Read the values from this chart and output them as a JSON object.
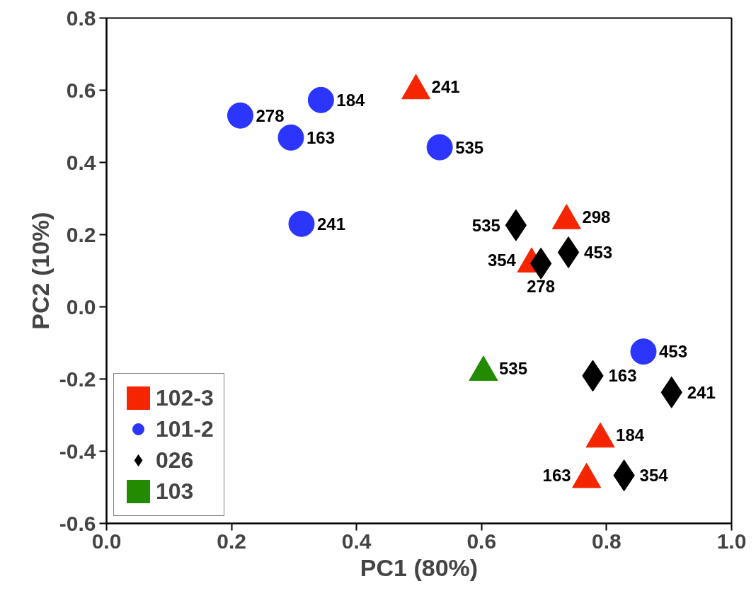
{
  "chart_data": {
    "type": "scatter",
    "xlabel": "PC1 (80%)",
    "ylabel": "PC2 (10%)",
    "xlim": [
      0,
      1
    ],
    "ylim": [
      -0.6,
      0.8
    ],
    "xticks": [
      {
        "value": 0,
        "label": "0.0"
      },
      0.2,
      0.4,
      0.6,
      0.8,
      {
        "value": 1,
        "label": "1.0"
      }
    ],
    "yticks": [
      -0.6,
      -0.4,
      -0.2,
      {
        "value": 0,
        "label": "0.0"
      },
      0.2,
      0.4,
      0.6,
      0.8
    ],
    "grid": false,
    "legend": "bottom left",
    "series": [
      {
        "name": "102-3",
        "color": "#f52500",
        "marker": "triangle",
        "x": [
          0.495,
          0.736,
          0.68,
          0.79,
          0.768
        ],
        "values": [
          0.61,
          0.25,
          0.13,
          -0.355,
          -0.467
        ]
      },
      {
        "name": "101-2",
        "color": "#2b35fb",
        "marker": "circle",
        "x": [
          0.214,
          0.343,
          0.295,
          0.312,
          0.533,
          0.859
        ],
        "values": [
          0.53,
          0.573,
          0.469,
          0.23,
          0.442,
          -0.124
        ]
      },
      {
        "name": "026",
        "color": "#000000",
        "marker": "diamond",
        "x": [
          0.655,
          0.695,
          0.739,
          0.778,
          0.904,
          0.828
        ],
        "values": [
          0.226,
          0.12,
          0.151,
          -0.191,
          -0.237,
          -0.467
        ]
      },
      {
        "name": "103",
        "color": "#228b00",
        "marker": "triangle",
        "x": [
          0.603
        ],
        "values": [
          -0.17
        ]
      }
    ],
    "annotations": [
      {
        "text": "241",
        "x": 0.495,
        "y": 0.61
      },
      {
        "text": "298",
        "x": 0.736,
        "y": 0.25
      },
      {
        "text": "354",
        "x": 0.68,
        "y": 0.13
      },
      {
        "text": "184",
        "x": 0.79,
        "y": -0.355
      },
      {
        "text": "163",
        "x": 0.768,
        "y": -0.467
      },
      {
        "text": "278",
        "x": 0.214,
        "y": 0.53
      },
      {
        "text": "184",
        "x": 0.343,
        "y": 0.573
      },
      {
        "text": "163",
        "x": 0.295,
        "y": 0.469
      },
      {
        "text": "241",
        "x": 0.312,
        "y": 0.23
      },
      {
        "text": "535",
        "x": 0.533,
        "y": 0.442
      },
      {
        "text": "453",
        "x": 0.859,
        "y": -0.124
      },
      {
        "text": "535",
        "x": 0.655,
        "y": 0.226
      },
      {
        "text": "278",
        "x": 0.695,
        "y": 0.12
      },
      {
        "text": "453",
        "x": 0.739,
        "y": 0.151
      },
      {
        "text": "163",
        "x": 0.778,
        "y": -0.191
      },
      {
        "text": "241",
        "x": 0.904,
        "y": -0.237
      },
      {
        "text": "354",
        "x": 0.828,
        "y": -0.467
      },
      {
        "text": "535",
        "x": 0.603,
        "y": -0.17
      }
    ]
  }
}
